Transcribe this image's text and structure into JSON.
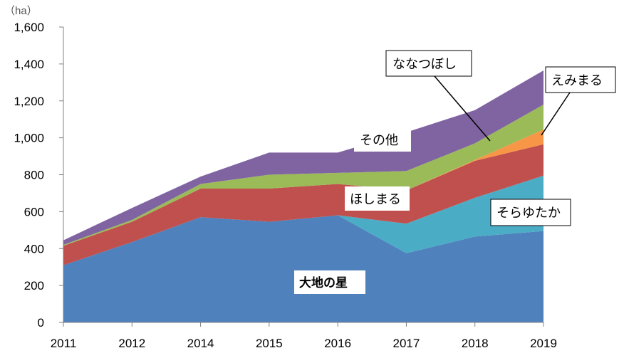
{
  "chart_data": {
    "type": "area",
    "stacked": true,
    "unit_label": "（ha）",
    "x": [
      "2011",
      "2012",
      "2014",
      "2015",
      "2016",
      "2017",
      "2018",
      "2019"
    ],
    "ylim": [
      0,
      1600
    ],
    "yticks": [
      0,
      200,
      400,
      600,
      800,
      1000,
      1200,
      1400,
      1600
    ],
    "ytick_labels": [
      "0",
      "200",
      "400",
      "600",
      "800",
      "1,000",
      "1,200",
      "1,400",
      "1,600"
    ],
    "grid": false,
    "series": [
      {
        "name": "大地の星",
        "color": "#4F81BD",
        "values": [
          310,
          435,
          570,
          545,
          580,
          375,
          465,
          495
        ]
      },
      {
        "name": "そらゆたか",
        "color": "#4BACC6",
        "values": [
          0,
          0,
          0,
          0,
          0,
          160,
          210,
          300
        ]
      },
      {
        "name": "ほしまる",
        "color": "#C0504D",
        "values": [
          105,
          110,
          155,
          180,
          170,
          180,
          200,
          170
        ]
      },
      {
        "name": "えみまる",
        "color": "#F79646",
        "values": [
          0,
          0,
          0,
          0,
          0,
          0,
          5,
          80
        ]
      },
      {
        "name": "その他",
        "color": "#9BBB59",
        "values": [
          5,
          10,
          25,
          75,
          60,
          105,
          90,
          135
        ]
      },
      {
        "name": "ななつぼし",
        "color": "#8064A2",
        "values": [
          25,
          65,
          40,
          120,
          110,
          210,
          180,
          185
        ]
      }
    ]
  }
}
